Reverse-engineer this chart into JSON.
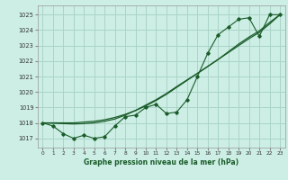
{
  "title": "Graphe pression niveau de la mer (hPa)",
  "bg_color": "#cceee4",
  "grid_color": "#aad4c8",
  "line_color": "#1a5c2a",
  "x_ticks": [
    0,
    1,
    2,
    3,
    4,
    5,
    6,
    7,
    8,
    9,
    10,
    11,
    12,
    13,
    14,
    15,
    16,
    17,
    18,
    19,
    20,
    21,
    22,
    23
  ],
  "y_ticks": [
    1017,
    1018,
    1019,
    1020,
    1021,
    1022,
    1023,
    1024,
    1025
  ],
  "ylim": [
    1016.4,
    1025.6
  ],
  "xlim": [
    -0.5,
    23.5
  ],
  "series_marker": [
    1018.0,
    1017.8,
    1017.3,
    1017.0,
    1017.2,
    1017.0,
    1017.1,
    1017.8,
    1018.4,
    1018.5,
    1019.0,
    1019.2,
    1018.6,
    1018.7,
    1019.5,
    1021.0,
    1022.5,
    1023.7,
    1024.2,
    1024.7,
    1024.8,
    1023.6,
    1025.0,
    1025.0
  ],
  "series_line1": [
    1018.0,
    1018.0,
    1018.0,
    1018.0,
    1018.05,
    1018.1,
    1018.2,
    1018.35,
    1018.55,
    1018.8,
    1019.1,
    1019.45,
    1019.85,
    1020.3,
    1020.75,
    1021.2,
    1021.65,
    1022.1,
    1022.55,
    1023.0,
    1023.45,
    1023.85,
    1024.4,
    1025.0
  ],
  "series_line2": [
    1018.0,
    1017.98,
    1017.95,
    1017.93,
    1017.95,
    1018.0,
    1018.1,
    1018.25,
    1018.5,
    1018.8,
    1019.15,
    1019.5,
    1019.9,
    1020.35,
    1020.78,
    1021.2,
    1021.65,
    1022.1,
    1022.6,
    1023.1,
    1023.55,
    1023.95,
    1024.5,
    1025.0
  ]
}
